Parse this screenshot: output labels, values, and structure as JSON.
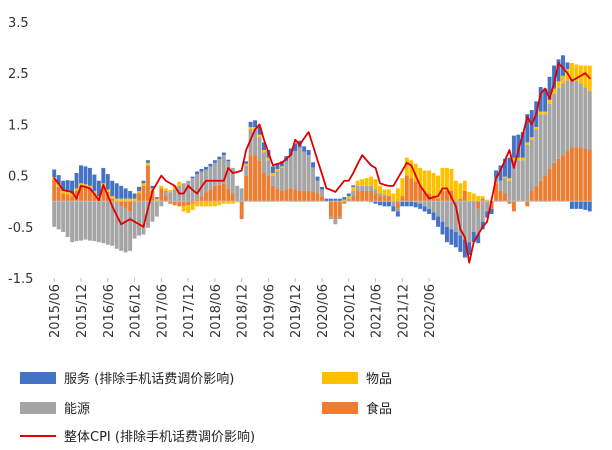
{
  "chart_data": {
    "type": "bar",
    "subtype": "stacked-bar-with-line",
    "title": "",
    "xlabel": "",
    "ylabel": "",
    "ylim": [
      -1.5,
      3.5
    ],
    "yticks": [
      3.5,
      2.5,
      1.5,
      0.5,
      -0.5,
      -1.5
    ],
    "ytick_labels": [
      "3.5",
      "2.5",
      "1.5",
      "0.5",
      "-0.5",
      "-1.5"
    ],
    "start_month": "2015/06",
    "xtick_labels": [
      "2015/06",
      "2015/12",
      "2016/06",
      "2016/12",
      "2017/06",
      "2017/12",
      "2018/06",
      "2018/12",
      "2019/06",
      "2019/12",
      "2020/06",
      "2020/12",
      "2021/06",
      "2021/12",
      "2022/06"
    ],
    "grid": false,
    "legend_position": "bottom",
    "legend": [
      {
        "key": "services",
        "label": "服务 (排除手机话费调价影响)",
        "color": "#4472C4",
        "kind": "bar"
      },
      {
        "key": "goods",
        "label": "物品",
        "color": "#FFC000",
        "kind": "bar"
      },
      {
        "key": "energy",
        "label": "能源",
        "color": "#A5A5A5",
        "kind": "bar"
      },
      {
        "key": "food",
        "label": "食品",
        "color": "#ED7D31",
        "kind": "bar"
      },
      {
        "key": "total",
        "label": "整体CPI (排除手机话费调价影响)",
        "color": "#E00000",
        "kind": "line"
      }
    ],
    "anchors": {
      "total": [
        [
          0,
          0.45
        ],
        [
          2,
          0.22
        ],
        [
          4,
          0.18
        ],
        [
          5,
          0.05
        ],
        [
          6,
          0.3
        ],
        [
          8,
          0.25
        ],
        [
          10,
          0.02
        ],
        [
          11,
          0.32
        ],
        [
          13,
          -0.1
        ],
        [
          15,
          -0.45
        ],
        [
          17,
          -0.35
        ],
        [
          20,
          -0.5
        ],
        [
          22,
          0.2
        ],
        [
          24,
          0.5
        ],
        [
          25,
          0.4
        ],
        [
          27,
          0.3
        ],
        [
          28,
          0.15
        ],
        [
          29,
          0.15
        ],
        [
          30,
          0.3
        ],
        [
          32,
          0.15
        ],
        [
          34,
          0.4
        ],
        [
          36,
          0.4
        ],
        [
          38,
          0.4
        ],
        [
          39,
          0.65
        ],
        [
          40,
          0.55
        ],
        [
          42,
          0.6
        ],
        [
          43,
          1.0
        ],
        [
          45,
          1.4
        ],
        [
          46,
          1.5
        ],
        [
          47,
          1.2
        ],
        [
          49,
          0.7
        ],
        [
          51,
          0.75
        ],
        [
          53,
          0.9
        ],
        [
          54,
          1.2
        ],
        [
          55,
          1.1
        ],
        [
          57,
          1.35
        ],
        [
          59,
          0.8
        ],
        [
          61,
          0.25
        ],
        [
          63,
          0.18
        ],
        [
          65,
          0.4
        ],
        [
          66,
          0.4
        ],
        [
          67,
          0.55
        ],
        [
          69,
          0.9
        ],
        [
          71,
          0.7
        ],
        [
          72,
          0.65
        ],
        [
          73,
          0.35
        ],
        [
          75,
          0.3
        ],
        [
          76,
          0.3
        ],
        [
          79,
          0.75
        ],
        [
          80,
          0.7
        ],
        [
          81,
          0.5
        ],
        [
          82,
          0.3
        ],
        [
          84,
          0.05
        ],
        [
          85,
          0.08
        ],
        [
          86,
          0.1
        ],
        [
          87,
          0.25
        ],
        [
          88,
          0.25
        ],
        [
          89,
          0.08
        ],
        [
          90,
          -0.1
        ],
        [
          91,
          -0.55
        ],
        [
          92,
          -0.7
        ],
        [
          93,
          -1.2
        ],
        [
          94,
          -0.8
        ],
        [
          96,
          -0.5
        ],
        [
          97,
          -0.4
        ],
        [
          99,
          0.45
        ],
        [
          100,
          0.6
        ],
        [
          102,
          1.0
        ],
        [
          103,
          0.65
        ],
        [
          104,
          1.0
        ],
        [
          105,
          1.3
        ],
        [
          106,
          1.65
        ],
        [
          107,
          1.5
        ],
        [
          108,
          1.7
        ],
        [
          109,
          2.1
        ],
        [
          110,
          2.2
        ],
        [
          111,
          2.0
        ],
        [
          112,
          2.3
        ],
        [
          113,
          2.7
        ],
        [
          114,
          2.6
        ],
        [
          115,
          2.5
        ],
        [
          116,
          2.35
        ],
        [
          119,
          2.5
        ],
        [
          120,
          2.4
        ]
      ],
      "food": [
        [
          0,
          0.42
        ],
        [
          2,
          0.15
        ],
        [
          4,
          0.1
        ],
        [
          6,
          0.3
        ],
        [
          8,
          0.25
        ],
        [
          10,
          0.05
        ],
        [
          11,
          0.3
        ],
        [
          13,
          0.05
        ],
        [
          15,
          -0.1
        ],
        [
          17,
          -0.2
        ],
        [
          19,
          0.15
        ],
        [
          20,
          0.3
        ],
        [
          21,
          0.7
        ],
        [
          22,
          0.2
        ],
        [
          23,
          0.0
        ],
        [
          24,
          0.25
        ],
        [
          26,
          -0.05
        ],
        [
          28,
          -0.1
        ],
        [
          29,
          -0.1
        ],
        [
          31,
          -0.05
        ],
        [
          33,
          0.1
        ],
        [
          36,
          0.3
        ],
        [
          38,
          0.35
        ],
        [
          40,
          0.15
        ],
        [
          41,
          0.0
        ],
        [
          42,
          -0.35
        ],
        [
          43,
          0.5
        ],
        [
          44,
          0.9
        ],
        [
          45,
          0.9
        ],
        [
          46,
          0.8
        ],
        [
          47,
          0.55
        ],
        [
          48,
          0.5
        ],
        [
          49,
          0.3
        ],
        [
          51,
          0.2
        ],
        [
          53,
          0.25
        ],
        [
          55,
          0.2
        ],
        [
          57,
          0.2
        ],
        [
          59,
          0.15
        ],
        [
          60,
          0.1
        ],
        [
          61,
          0.0
        ],
        [
          62,
          -0.3
        ],
        [
          63,
          -0.35
        ],
        [
          64,
          -0.3
        ],
        [
          65,
          -0.05
        ],
        [
          66,
          0.0
        ],
        [
          68,
          0.2
        ],
        [
          69,
          0.2
        ],
        [
          71,
          0.2
        ],
        [
          73,
          0.1
        ],
        [
          75,
          0.1
        ],
        [
          76,
          0.0
        ],
        [
          77,
          -0.15
        ],
        [
          78,
          0.1
        ],
        [
          79,
          0.5
        ],
        [
          80,
          0.45
        ],
        [
          82,
          0.3
        ],
        [
          83,
          0.2
        ],
        [
          84,
          0.15
        ],
        [
          86,
          0.05
        ],
        [
          87,
          0.2
        ],
        [
          88,
          0.2
        ],
        [
          89,
          0.2
        ],
        [
          90,
          0.0
        ],
        [
          91,
          0.05
        ],
        [
          92,
          0.2
        ],
        [
          93,
          0.0
        ],
        [
          94,
          0.0
        ],
        [
          95,
          -0.15
        ],
        [
          96,
          0.05
        ],
        [
          97,
          0.0
        ],
        [
          98,
          -0.15
        ],
        [
          99,
          0.35
        ],
        [
          100,
          0.2
        ],
        [
          101,
          0.15
        ],
        [
          102,
          -0.05
        ],
        [
          103,
          -0.2
        ],
        [
          104,
          0.0
        ],
        [
          105,
          0.0
        ],
        [
          106,
          -0.1
        ],
        [
          107,
          0.2
        ],
        [
          108,
          0.3
        ],
        [
          109,
          0.4
        ],
        [
          110,
          0.5
        ],
        [
          112,
          0.75
        ],
        [
          114,
          0.9
        ],
        [
          116,
          1.05
        ],
        [
          118,
          1.05
        ],
        [
          120,
          1.0
        ]
      ],
      "energy": [
        [
          0,
          -0.5
        ],
        [
          2,
          -0.6
        ],
        [
          4,
          -0.8
        ],
        [
          7,
          -0.75
        ],
        [
          10,
          -0.8
        ],
        [
          12,
          -0.85
        ],
        [
          14,
          -0.9
        ],
        [
          16,
          -0.85
        ],
        [
          18,
          -0.7
        ],
        [
          20,
          -0.65
        ],
        [
          22,
          -0.4
        ],
        [
          23,
          -0.3
        ],
        [
          24,
          -0.1
        ],
        [
          25,
          0.1
        ],
        [
          28,
          0.3
        ],
        [
          30,
          0.4
        ],
        [
          32,
          0.5
        ],
        [
          34,
          0.45
        ],
        [
          36,
          0.45
        ],
        [
          38,
          0.55
        ],
        [
          40,
          0.5
        ],
        [
          41,
          0.3
        ],
        [
          42,
          0.25
        ],
        [
          43,
          0.2
        ],
        [
          44,
          0.5
        ],
        [
          45,
          0.5
        ],
        [
          46,
          0.45
        ],
        [
          47,
          0.4
        ],
        [
          48,
          0.3
        ],
        [
          49,
          0.2
        ],
        [
          51,
          0.45
        ],
        [
          53,
          0.65
        ],
        [
          55,
          0.85
        ],
        [
          57,
          0.7
        ],
        [
          59,
          0.25
        ],
        [
          61,
          0.0
        ],
        [
          63,
          -0.1
        ],
        [
          65,
          0.0
        ],
        [
          67,
          0.1
        ],
        [
          69,
          0.1
        ],
        [
          71,
          0.1
        ],
        [
          73,
          0.05
        ],
        [
          75,
          0.0
        ],
        [
          76,
          -0.1
        ],
        [
          78,
          0.0
        ],
        [
          80,
          0.0
        ],
        [
          82,
          -0.05
        ],
        [
          84,
          -0.15
        ],
        [
          86,
          -0.3
        ],
        [
          88,
          -0.5
        ],
        [
          90,
          -0.6
        ],
        [
          92,
          -0.75
        ],
        [
          93,
          -0.8
        ],
        [
          94,
          -0.6
        ],
        [
          96,
          -0.4
        ],
        [
          97,
          -0.2
        ],
        [
          98,
          0.0
        ],
        [
          99,
          0.1
        ],
        [
          100,
          0.2
        ],
        [
          102,
          0.4
        ],
        [
          103,
          0.8
        ],
        [
          104,
          0.8
        ],
        [
          105,
          0.8
        ],
        [
          106,
          1.1
        ],
        [
          107,
          1.0
        ],
        [
          108,
          1.1
        ],
        [
          109,
          1.3
        ],
        [
          110,
          1.2
        ],
        [
          112,
          1.35
        ],
        [
          114,
          1.4
        ],
        [
          116,
          1.35
        ],
        [
          118,
          1.25
        ],
        [
          120,
          1.15
        ]
      ],
      "services": [
        [
          0,
          0.15
        ],
        [
          2,
          0.2
        ],
        [
          4,
          0.25
        ],
        [
          6,
          0.35
        ],
        [
          8,
          0.35
        ],
        [
          10,
          0.3
        ],
        [
          12,
          0.3
        ],
        [
          14,
          0.3
        ],
        [
          16,
          0.2
        ],
        [
          18,
          0.1
        ],
        [
          20,
          0.05
        ],
        [
          22,
          0.05
        ],
        [
          24,
          0.0
        ],
        [
          26,
          0.0
        ],
        [
          28,
          0.0
        ],
        [
          30,
          0.0
        ],
        [
          32,
          0.05
        ],
        [
          34,
          0.05
        ],
        [
          36,
          0.05
        ],
        [
          38,
          0.05
        ],
        [
          40,
          0.0
        ],
        [
          42,
          0.0
        ],
        [
          44,
          0.1
        ],
        [
          46,
          0.15
        ],
        [
          48,
          0.15
        ],
        [
          50,
          0.1
        ],
        [
          52,
          0.1
        ],
        [
          54,
          0.15
        ],
        [
          56,
          0.1
        ],
        [
          58,
          0.1
        ],
        [
          60,
          0.05
        ],
        [
          62,
          0.05
        ],
        [
          64,
          0.05
        ],
        [
          66,
          0.05
        ],
        [
          68,
          0.0
        ],
        [
          70,
          0.0
        ],
        [
          72,
          -0.05
        ],
        [
          74,
          -0.1
        ],
        [
          76,
          -0.1
        ],
        [
          78,
          -0.1
        ],
        [
          80,
          -0.1
        ],
        [
          82,
          -0.1
        ],
        [
          84,
          -0.1
        ],
        [
          86,
          -0.2
        ],
        [
          88,
          -0.3
        ],
        [
          90,
          -0.3
        ],
        [
          92,
          -0.35
        ],
        [
          93,
          -0.25
        ],
        [
          94,
          -0.2
        ],
        [
          96,
          -0.15
        ],
        [
          98,
          -0.1
        ],
        [
          99,
          0.15
        ],
        [
          100,
          0.3
        ],
        [
          102,
          0.4
        ],
        [
          104,
          0.45
        ],
        [
          106,
          0.55
        ],
        [
          108,
          0.5
        ],
        [
          110,
          0.45
        ],
        [
          112,
          0.45
        ],
        [
          114,
          0.4
        ],
        [
          116,
          -0.15
        ],
        [
          118,
          -0.15
        ],
        [
          120,
          -0.2
        ]
      ],
      "goods": [
        [
          0,
          0.05
        ],
        [
          4,
          0.05
        ],
        [
          8,
          0.05
        ],
        [
          12,
          0.05
        ],
        [
          16,
          0.05
        ],
        [
          20,
          0.05
        ],
        [
          22,
          0.05
        ],
        [
          24,
          0.05
        ],
        [
          26,
          0.05
        ],
        [
          28,
          0.08
        ],
        [
          29,
          -0.1
        ],
        [
          30,
          -0.15
        ],
        [
          32,
          -0.1
        ],
        [
          34,
          -0.1
        ],
        [
          36,
          -0.1
        ],
        [
          38,
          -0.05
        ],
        [
          40,
          -0.05
        ],
        [
          42,
          0.0
        ],
        [
          44,
          0.05
        ],
        [
          46,
          0.05
        ],
        [
          48,
          0.05
        ],
        [
          50,
          0.05
        ],
        [
          52,
          0.0
        ],
        [
          54,
          0.0
        ],
        [
          56,
          0.0
        ],
        [
          58,
          0.0
        ],
        [
          60,
          0.0
        ],
        [
          62,
          0.0
        ],
        [
          64,
          0.0
        ],
        [
          66,
          0.05
        ],
        [
          68,
          0.1
        ],
        [
          70,
          0.15
        ],
        [
          72,
          0.2
        ],
        [
          74,
          0.1
        ],
        [
          76,
          0.15
        ],
        [
          78,
          0.35
        ],
        [
          80,
          0.35
        ],
        [
          82,
          0.35
        ],
        [
          84,
          0.45
        ],
        [
          86,
          0.45
        ],
        [
          88,
          0.45
        ],
        [
          90,
          0.4
        ],
        [
          92,
          0.2
        ],
        [
          94,
          0.15
        ],
        [
          96,
          0.05
        ],
        [
          98,
          0.0
        ],
        [
          100,
          0.0
        ],
        [
          102,
          0.05
        ],
        [
          104,
          0.05
        ],
        [
          106,
          0.05
        ],
        [
          108,
          0.05
        ],
        [
          110,
          0.05
        ],
        [
          112,
          0.1
        ],
        [
          114,
          0.15
        ],
        [
          116,
          0.3
        ],
        [
          118,
          0.35
        ],
        [
          120,
          0.5
        ]
      ]
    }
  }
}
